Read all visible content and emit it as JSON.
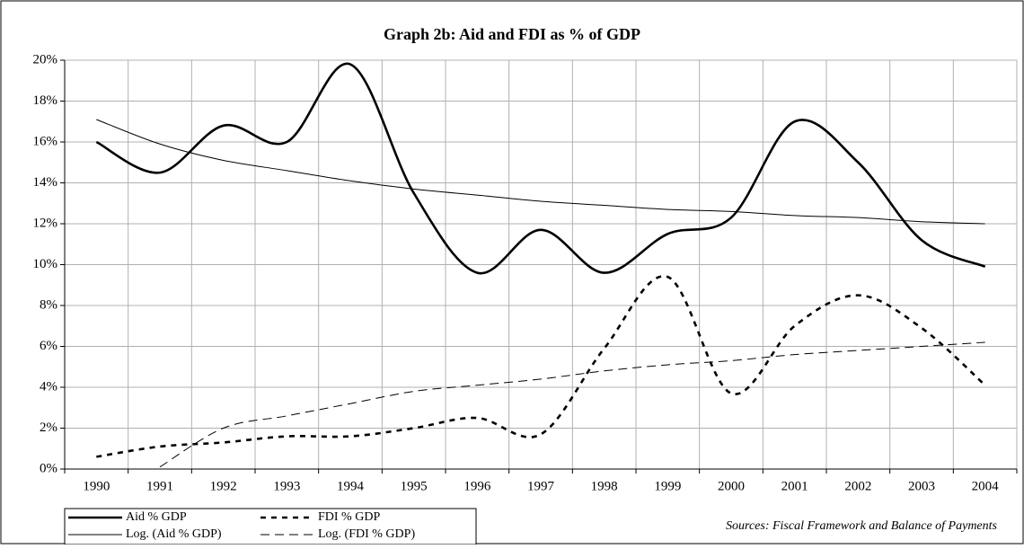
{
  "chart_data": {
    "type": "line",
    "title": "Graph 2b: Aid and FDI as % of GDP",
    "annotation": "Sources: Fiscal Framework and Balance of Payments",
    "categories": [
      "1990",
      "1991",
      "1992",
      "1993",
      "1994",
      "1995",
      "1996",
      "1997",
      "1998",
      "1999",
      "2000",
      "2001",
      "2002",
      "2003",
      "2004"
    ],
    "series": [
      {
        "name": "Aid % GDP",
        "color": "#000000",
        "style": "thick",
        "values": [
          16.0,
          14.5,
          16.8,
          16.0,
          19.8,
          13.5,
          9.6,
          11.7,
          9.6,
          11.5,
          12.3,
          17.0,
          15.0,
          11.2,
          9.9
        ]
      },
      {
        "name": "FDI % GDP",
        "color": "#000000",
        "style": "dotted",
        "values": [
          0.6,
          1.1,
          1.3,
          1.6,
          1.6,
          2.0,
          2.5,
          1.7,
          5.9,
          9.4,
          3.7,
          7.0,
          8.5,
          6.9,
          4.1
        ]
      },
      {
        "name": "Log. (Aid % GDP)",
        "color": "#000000",
        "style": "thin",
        "values": [
          17.1,
          15.9,
          15.1,
          14.6,
          14.1,
          13.7,
          13.4,
          13.1,
          12.9,
          12.7,
          12.6,
          12.4,
          12.3,
          12.1,
          12.0
        ]
      },
      {
        "name": "Log. (FDI % GDP)",
        "color": "#000000",
        "style": "dashed",
        "values": [
          null,
          0.1,
          2.0,
          2.6,
          3.2,
          3.8,
          4.1,
          4.4,
          4.8,
          5.1,
          5.3,
          5.6,
          5.8,
          6.0,
          6.2
        ]
      }
    ],
    "ylim": [
      0,
      20
    ],
    "yticks": [
      {
        "value": 0,
        "label": "0%"
      },
      {
        "value": 2,
        "label": "2%"
      },
      {
        "value": 4,
        "label": "4%"
      },
      {
        "value": 6,
        "label": "6%"
      },
      {
        "value": 8,
        "label": "8%"
      },
      {
        "value": 10,
        "label": "10%"
      },
      {
        "value": 12,
        "label": "12%"
      },
      {
        "value": 14,
        "label": "14%"
      },
      {
        "value": 16,
        "label": "16%"
      },
      {
        "value": 18,
        "label": "18%"
      },
      {
        "value": 20,
        "label": "20%"
      }
    ],
    "grid": true,
    "smooth": true
  }
}
